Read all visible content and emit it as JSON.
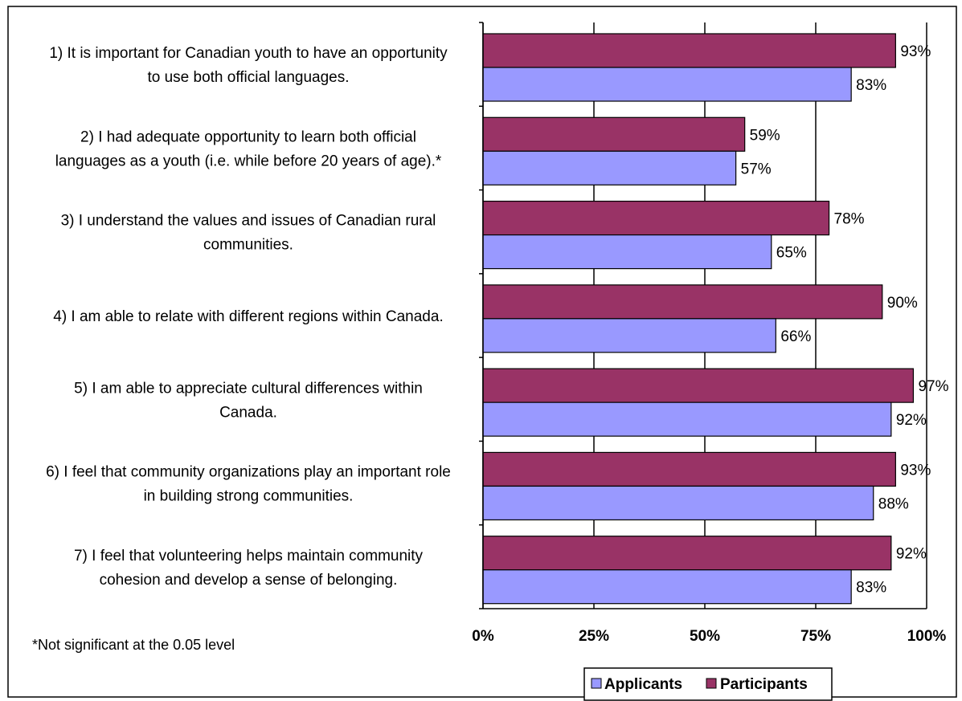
{
  "chart_data": {
    "type": "bar",
    "orientation": "horizontal",
    "categories": [
      [
        "1) It is important for Canadian youth to have an opportunity",
        "to use both official languages."
      ],
      [
        "2) I had adequate opportunity to learn both official",
        "languages as a youth (i.e. while before 20 years of age).*"
      ],
      [
        "3) I understand the values and issues of Canadian rural",
        "communities."
      ],
      [
        "4) I am able to relate with different regions within Canada."
      ],
      [
        "5) I am able to appreciate cultural differences within",
        "Canada."
      ],
      [
        "6) I feel that community organizations play an important role",
        "in building strong communities."
      ],
      [
        "7) I feel that volunteering helps maintain community",
        "cohesion and develop a sense of belonging."
      ]
    ],
    "series": [
      {
        "name": "Participants",
        "color": "#993366",
        "values": [
          93,
          59,
          78,
          90,
          97,
          93,
          92
        ],
        "labels": [
          "93%",
          "59%",
          "78%",
          "90%",
          "97%",
          "93%",
          "92%"
        ]
      },
      {
        "name": "Applicants",
        "color": "#9999ff",
        "values": [
          83,
          57,
          65,
          66,
          92,
          88,
          83
        ],
        "labels": [
          "83%",
          "57%",
          "65%",
          "66%",
          "92%",
          "88%",
          "83%"
        ]
      }
    ],
    "xlim": [
      0,
      100
    ],
    "x_ticks": [
      "0%",
      "25%",
      "50%",
      "75%",
      "100%"
    ],
    "gridlines": "vertical",
    "legend": {
      "position": "bottom",
      "items": [
        "Applicants",
        "Participants"
      ]
    },
    "footnote": "*Not significant at the 0.05 level"
  }
}
